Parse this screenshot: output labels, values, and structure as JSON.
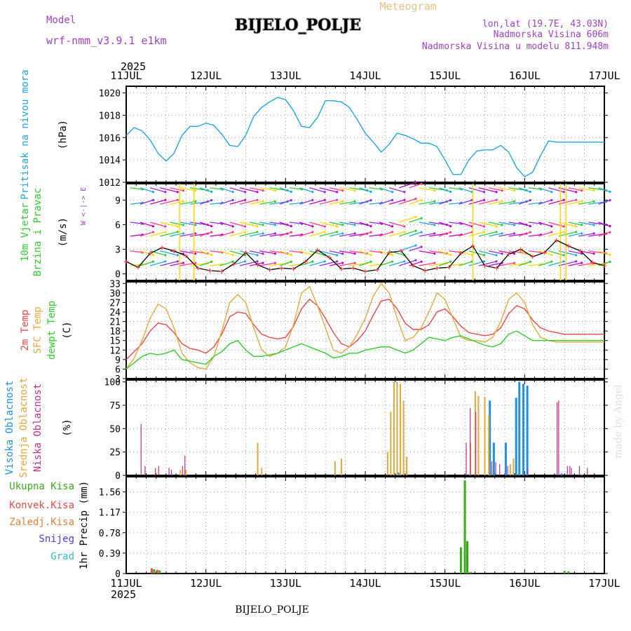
{
  "header": {
    "model_label": "Model",
    "model_value": "wrf-nmm_v3.9.1 e1km",
    "title": "BIJELO_POLJE",
    "subtitle": "Meteogram",
    "lonlat": "lon,lat (19.7E, 43.03N)",
    "elevation": "Nadmorska Visina 606m",
    "model_elevation": "Nadmorska Visina u modelu 811.948m",
    "footer_station": "BIJELO_POLJE",
    "credit": "made by Angel"
  },
  "time_axis": {
    "year": "2025",
    "labels": [
      "11JUL",
      "12JUL",
      "13JUL",
      "14JUL",
      "15JUL",
      "16JUL",
      "17JUL"
    ],
    "range_days": [
      0,
      6
    ]
  },
  "colors": {
    "pressure": "#1ea7e1",
    "temp2m": "#e84a4a",
    "sfc_temp": "#e8a83a",
    "dewpoint": "#2ecc2e",
    "cloud_high": "#1e90e8",
    "cloud_mid": "#e0a83a",
    "cloud_low": "#c0308a",
    "precip_total": "#3aaa1a",
    "precip_conv": "#e84a4a",
    "precip_frz": "#e8803a",
    "snow": "#4a3aee",
    "hail": "#2ac0c0",
    "model_text": "#a040c8",
    "wind_speed_line": "#000000",
    "wind_gust_marks": "#ff3a3a"
  },
  "chart_data": [
    {
      "type": "line",
      "name": "pressure",
      "ylabel_outer": "Pritisak na nivou mora",
      "ylabel_inner": "(hPa)",
      "ylim": [
        1012,
        1020.6
      ],
      "yticks": [
        1012,
        1014,
        1016,
        1018,
        1020
      ],
      "grid": true,
      "series": [
        {
          "x": [
            0,
            0.1,
            0.2,
            0.3,
            0.4,
            0.5,
            0.6,
            0.7,
            0.8,
            0.9,
            1.0,
            1.1,
            1.2,
            1.3,
            1.4,
            1.5,
            1.6,
            1.7,
            1.8,
            1.9,
            2.0,
            2.1,
            2.2,
            2.3,
            2.4,
            2.5,
            2.6,
            2.7,
            2.8,
            2.9,
            3.0,
            3.1,
            3.2,
            3.3,
            3.4,
            3.5,
            3.6,
            3.7,
            3.8,
            3.9,
            4.0,
            4.1,
            4.2,
            4.3,
            4.4,
            4.5,
            4.6,
            4.7,
            4.8,
            4.9,
            5.0,
            5.1,
            5.2,
            5.3,
            5.4,
            5.5,
            5.6,
            5.7,
            5.8,
            5.9,
            6.0
          ],
          "y": [
            1016.2,
            1016.9,
            1016.6,
            1015.8,
            1014.6,
            1013.9,
            1014.6,
            1016.2,
            1017.0,
            1017.0,
            1017.3,
            1017.1,
            1016.3,
            1015.3,
            1015.2,
            1016.2,
            1017.9,
            1018.7,
            1019.2,
            1019.6,
            1019.4,
            1018.4,
            1017.0,
            1016.9,
            1017.8,
            1019.3,
            1019.3,
            1019.2,
            1018.7,
            1017.6,
            1016.4,
            1015.6,
            1014.7,
            1015.4,
            1016.4,
            1016.2,
            1015.9,
            1015.5,
            1015.5,
            1015.2,
            1014.0,
            1012.7,
            1012.7,
            1014.0,
            1014.8,
            1014.9,
            1014.9,
            1015.3,
            1014.7,
            1013.3,
            1012.5,
            1012.9,
            1014.4,
            1015.7,
            1015.6,
            1015.6,
            1015.6,
            1015.6,
            1015.6,
            1015.6,
            1015.6
          ]
        }
      ]
    },
    {
      "type": "scatter",
      "name": "wind",
      "ylabel_outer": [
        "10m Vjetar",
        "Brzina i Pravac"
      ],
      "ylabel_inner": "(m/s)",
      "compass": "W <-|-> E",
      "ylim": [
        -0.8,
        11
      ],
      "yticks": [
        0,
        3,
        6,
        9
      ],
      "grid": true,
      "speed": {
        "x": [
          0,
          0.15,
          0.3,
          0.45,
          0.6,
          0.75,
          0.9,
          1.05,
          1.2,
          1.35,
          1.5,
          1.65,
          1.8,
          1.95,
          2.1,
          2.25,
          2.4,
          2.55,
          2.7,
          2.85,
          3.0,
          3.15,
          3.3,
          3.45,
          3.6,
          3.75,
          3.9,
          4.05,
          4.2,
          4.35,
          4.5,
          4.65,
          4.8,
          4.95,
          5.1,
          5.25,
          5.4,
          5.55,
          5.7,
          5.85,
          6.0
        ],
        "y": [
          1.5,
          0.8,
          2.5,
          3.2,
          2.8,
          2.2,
          0.7,
          0.4,
          0.3,
          1.2,
          2.6,
          1.1,
          0.5,
          0.7,
          0.6,
          1.5,
          2.9,
          2.0,
          0.6,
          0.7,
          0.3,
          0.5,
          2.6,
          2.8,
          1.0,
          0.4,
          0.7,
          0.8,
          2.5,
          3.4,
          1.0,
          0.7,
          2.4,
          3.0,
          2.1,
          2.6,
          4.1,
          3.4,
          2.8,
          1.4,
          1.0
        ]
      }
    },
    {
      "type": "line",
      "name": "temperature",
      "ylabels_outer": [
        "2m Temp",
        "SFC Temp",
        "dewpt Temp"
      ],
      "ylabel_inner": "(C)",
      "ylim": [
        3,
        33.5
      ],
      "yticks": [
        3,
        6,
        9,
        12,
        15,
        18,
        21,
        24,
        27,
        30,
        33
      ],
      "grid": true,
      "series": [
        {
          "name": "2m Temp",
          "x": [
            0,
            0.1,
            0.2,
            0.3,
            0.4,
            0.5,
            0.6,
            0.7,
            0.8,
            0.9,
            1.0,
            1.1,
            1.2,
            1.3,
            1.4,
            1.5,
            1.6,
            1.7,
            1.8,
            1.9,
            2.0,
            2.1,
            2.2,
            2.3,
            2.4,
            2.5,
            2.6,
            2.7,
            2.8,
            2.9,
            3.0,
            3.1,
            3.2,
            3.3,
            3.4,
            3.5,
            3.6,
            3.7,
            3.8,
            3.9,
            4.0,
            4.1,
            4.2,
            4.3,
            4.4,
            4.5,
            4.6,
            4.7,
            4.8,
            4.9,
            5.0,
            5.1,
            5.2,
            5.3,
            5.4,
            5.5,
            5.6,
            5.7,
            5.8,
            5.9,
            6.0
          ],
          "y": [
            9,
            11.5,
            14,
            18,
            20.5,
            20,
            17.5,
            14,
            12.5,
            12,
            11,
            13,
            17,
            22.5,
            24,
            23.5,
            20,
            17,
            16,
            15.5,
            16,
            19.5,
            25,
            28,
            26,
            22,
            17.5,
            14,
            13,
            15,
            18,
            23,
            27.5,
            28,
            25,
            20.5,
            18.5,
            18.5,
            20,
            24,
            25,
            22.5,
            19.5,
            17.5,
            17,
            16.5,
            17,
            19,
            23.5,
            26,
            25,
            21.5,
            19,
            18,
            17.5,
            17,
            17,
            17,
            17,
            17,
            17
          ]
        },
        {
          "name": "SFC Temp",
          "x": [
            0,
            0.1,
            0.2,
            0.3,
            0.4,
            0.5,
            0.6,
            0.7,
            0.8,
            0.9,
            1.0,
            1.1,
            1.2,
            1.3,
            1.4,
            1.5,
            1.6,
            1.7,
            1.8,
            1.9,
            2.0,
            2.1,
            2.2,
            2.3,
            2.4,
            2.5,
            2.6,
            2.7,
            2.8,
            2.9,
            3.0,
            3.1,
            3.2,
            3.3,
            3.4,
            3.5,
            3.6,
            3.7,
            3.8,
            3.9,
            4.0,
            4.1,
            4.2,
            4.3,
            4.4,
            4.5,
            4.6,
            4.7,
            4.8,
            4.9,
            5.0,
            5.1,
            5.2,
            5.3,
            5.4,
            5.5,
            5.6,
            5.7,
            5.8,
            5.9,
            6.0
          ],
          "y": [
            6,
            9.5,
            15,
            22,
            26.5,
            25,
            19,
            11,
            8,
            6.5,
            6,
            10,
            18,
            27,
            29.5,
            27,
            19,
            12,
            10,
            11,
            13,
            20,
            30,
            32,
            26,
            19,
            12,
            11,
            13,
            17,
            22,
            29,
            33,
            30,
            22,
            15,
            16,
            19,
            24,
            30,
            28,
            22,
            16,
            15,
            15,
            14.5,
            16,
            21,
            28,
            30,
            27,
            20,
            16,
            15,
            14.5,
            14.5,
            14.5,
            14.5,
            14.5,
            14.5,
            14.5
          ]
        },
        {
          "name": "dewpt Temp",
          "x": [
            0,
            0.1,
            0.2,
            0.3,
            0.4,
            0.5,
            0.6,
            0.7,
            0.8,
            0.9,
            1.0,
            1.1,
            1.2,
            1.3,
            1.4,
            1.5,
            1.6,
            1.7,
            1.8,
            1.9,
            2.0,
            2.1,
            2.2,
            2.3,
            2.4,
            2.5,
            2.6,
            2.7,
            2.8,
            2.9,
            3.0,
            3.1,
            3.2,
            3.3,
            3.4,
            3.5,
            3.6,
            3.7,
            3.8,
            3.9,
            4.0,
            4.1,
            4.2,
            4.3,
            4.4,
            4.5,
            4.6,
            4.7,
            4.8,
            4.9,
            5.0,
            5.1,
            5.2,
            5.3,
            5.4,
            5.5,
            5.6,
            5.7,
            5.8,
            5.9,
            6.0
          ],
          "y": [
            6,
            8,
            10,
            11,
            10.5,
            11,
            12,
            9,
            8.5,
            8,
            7.5,
            10,
            11.5,
            14,
            15,
            12,
            10,
            10,
            10.5,
            11,
            12,
            13,
            14,
            13,
            12,
            11,
            9.5,
            10,
            11,
            11,
            12,
            12.5,
            13,
            13,
            12,
            11,
            12,
            14,
            16,
            15.5,
            15,
            16,
            16.5,
            15.5,
            14.5,
            13.5,
            13,
            14,
            17,
            18,
            16.5,
            15,
            15,
            15,
            15,
            15,
            15,
            15,
            15,
            15,
            15
          ]
        }
      ]
    },
    {
      "type": "bar",
      "name": "cloudiness",
      "ylabels_outer": [
        "Visoka Oblacnost",
        "Srednja Oblacnost",
        "Niska Oblacnost"
      ],
      "ylabel_inner": "(%)",
      "ylim": [
        0,
        102
      ],
      "yticks": [
        0,
        25,
        50,
        75,
        100
      ],
      "grid": true,
      "series": [
        {
          "name": "Visoka",
          "x": [
            0.72,
            1.8,
            3.4,
            4.0,
            4.3,
            4.55,
            4.6,
            4.75,
            4.88,
            4.92,
            4.97,
            5.02,
            5.45,
            5.7
          ],
          "values": [
            1,
            1,
            3,
            1,
            1,
            80,
            35,
            35,
            83,
            100,
            98,
            96,
            2,
            1
          ]
        },
        {
          "name": "Srednja",
          "x": [
            0.68,
            0.75,
            1.65,
            1.7,
            2.62,
            2.7,
            3.28,
            3.32,
            3.36,
            3.4,
            3.44,
            3.48,
            3.52,
            4.32,
            4.38,
            4.42,
            4.5,
            4.55,
            4.82,
            4.86
          ],
          "values": [
            6,
            6,
            35,
            8,
            15,
            18,
            25,
            68,
            100,
            100,
            98,
            80,
            20,
            35,
            90,
            85,
            84,
            65,
            12,
            18
          ]
        },
        {
          "name": "Niska",
          "x": [
            0.2,
            0.25,
            0.38,
            0.42,
            0.55,
            0.58,
            0.72,
            0.75,
            1.35,
            1.45,
            2.4,
            3.3,
            4.0,
            4.28,
            4.33,
            4.4,
            4.6,
            4.65,
            4.7,
            4.8,
            5.05,
            5.3,
            5.42,
            5.44,
            5.55,
            5.58,
            5.6,
            5.7,
            5.8
          ],
          "values": [
            55,
            10,
            8,
            10,
            8,
            6,
            10,
            21,
            1,
            1,
            1,
            1,
            1,
            35,
            72,
            68,
            15,
            14,
            12,
            10,
            8,
            1,
            78,
            80,
            10,
            10,
            8,
            10,
            8
          ]
        }
      ]
    },
    {
      "type": "bar",
      "name": "precipitation",
      "ylabels_outer": [
        "Ukupna Kisa",
        "Konvek.Kisa",
        "Zaledj.Kisa",
        "Snijeg",
        "Grad"
      ],
      "ylabel_inner": "1hr Precip (mm)",
      "ylim": [
        0,
        1.85
      ],
      "yticks": [
        0,
        0.39,
        0.78,
        1.17,
        1.56
      ],
      "ytick_labels": [
        "0",
        "0.39",
        "0.78",
        "1.17",
        "1.56"
      ],
      "grid": true,
      "series": [
        {
          "name": "Ukupna Kisa",
          "x": [
            0.35,
            0.42,
            4.2,
            4.25,
            4.28,
            4.32,
            5.5,
            5.55
          ],
          "values": [
            0.08,
            0.06,
            0.5,
            1.78,
            0.62,
            0.03,
            0.05,
            0.04
          ]
        },
        {
          "name": "Konvek.Kisa",
          "x": [
            0.32,
            0.39
          ],
          "values": [
            0.1,
            0.07
          ]
        }
      ]
    }
  ]
}
